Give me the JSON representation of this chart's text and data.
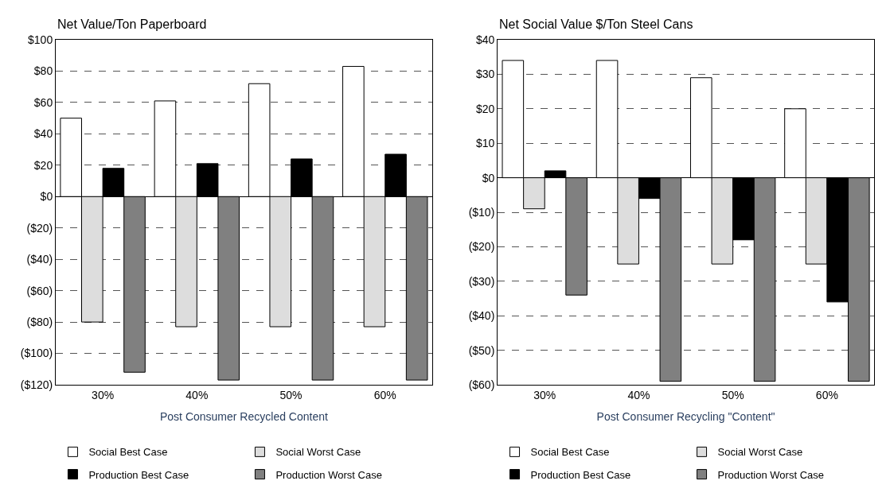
{
  "chart_data": [
    {
      "type": "bar",
      "title": "Net Value/Ton Paperboard",
      "xlabel": "Post Consumer Recycled Content",
      "categories": [
        "30%",
        "40%",
        "50%",
        "60%"
      ],
      "series": [
        {
          "name": "Social Best Case",
          "color": "#ffffff",
          "values": [
            50,
            61,
            72,
            83
          ]
        },
        {
          "name": "Social Worst Case",
          "color": "#dddddd",
          "values": [
            -80,
            -83,
            -83,
            -83
          ]
        },
        {
          "name": "Production Best Case",
          "color": "#000000",
          "values": [
            18,
            21,
            24,
            27
          ]
        },
        {
          "name": "Production Worst Case",
          "color": "#808080",
          "values": [
            -112,
            -117,
            -117,
            -117
          ]
        }
      ],
      "ylim": [
        -120,
        100
      ],
      "yticks": [
        {
          "value": -120,
          "label": "($120)"
        },
        {
          "value": -100,
          "label": "($100)"
        },
        {
          "value": -80,
          "label": "($80)"
        },
        {
          "value": -60,
          "label": "($60)"
        },
        {
          "value": -40,
          "label": "($40)"
        },
        {
          "value": -20,
          "label": "($20)"
        },
        {
          "value": 0,
          "label": "$0"
        },
        {
          "value": 20,
          "label": "$20"
        },
        {
          "value": 40,
          "label": "$40"
        },
        {
          "value": 60,
          "label": "$60"
        },
        {
          "value": 80,
          "label": "$80"
        },
        {
          "value": 100,
          "label": "$100"
        }
      ],
      "grid": "y",
      "legend": "bottom"
    },
    {
      "type": "bar",
      "title": "Net Social Value $/Ton Steel Cans",
      "xlabel": "Post Consumer Recycling \"Content\"",
      "categories": [
        "30%",
        "40%",
        "50%",
        "60%"
      ],
      "series": [
        {
          "name": "Social Best Case",
          "color": "#ffffff",
          "values": [
            34,
            34,
            29,
            20
          ]
        },
        {
          "name": "Social Worst Case",
          "color": "#dddddd",
          "values": [
            -9,
            -25,
            -25,
            -25
          ]
        },
        {
          "name": "Production Best Case",
          "color": "#000000",
          "values": [
            2,
            -6,
            -18,
            -36
          ]
        },
        {
          "name": "Production Worst Case",
          "color": "#808080",
          "values": [
            -34,
            -59,
            -59,
            -59
          ]
        }
      ],
      "ylim": [
        -60,
        40
      ],
      "yticks": [
        {
          "value": -60,
          "label": "($60)"
        },
        {
          "value": -50,
          "label": "($50)"
        },
        {
          "value": -40,
          "label": "($40)"
        },
        {
          "value": -30,
          "label": "($30)"
        },
        {
          "value": -20,
          "label": "($20)"
        },
        {
          "value": -10,
          "label": "($10)"
        },
        {
          "value": 0,
          "label": "$0"
        },
        {
          "value": 10,
          "label": "$10"
        },
        {
          "value": 20,
          "label": "$20"
        },
        {
          "value": 30,
          "label": "$30"
        },
        {
          "value": 40,
          "label": "$40"
        }
      ],
      "grid": "y",
      "legend": "bottom"
    }
  ]
}
